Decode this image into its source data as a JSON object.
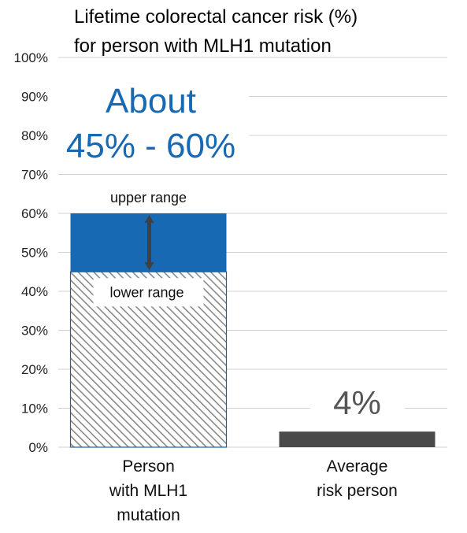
{
  "chart_data": {
    "type": "bar",
    "title_lines": [
      "Lifetime colorectal cancer risk (%)",
      "for person with MLH1 mutation"
    ],
    "xlabel": "",
    "ylabel": "",
    "ylim": [
      0,
      100
    ],
    "y_ticks": [
      0,
      10,
      20,
      30,
      40,
      50,
      60,
      70,
      80,
      90,
      100
    ],
    "y_tick_labels": [
      "0%",
      "10%",
      "20%",
      "30%",
      "40%",
      "50%",
      "60%",
      "70%",
      "80%",
      "90%",
      "100%"
    ],
    "grid": true,
    "categories": [
      {
        "label_lines": [
          "Person",
          "with MLH1",
          "mutation"
        ]
      },
      {
        "label_lines": [
          "Average",
          "risk person"
        ]
      }
    ],
    "bars": [
      {
        "category_index": 0,
        "lower": 45,
        "upper": 60,
        "lower_fill": "hatched",
        "range_color": "#1769b3",
        "lower_label": "lower range",
        "upper_label": "upper range"
      },
      {
        "category_index": 1,
        "value": 4,
        "color": "#4a4a4a",
        "label": "4%"
      }
    ],
    "annotation": {
      "lines": [
        "About",
        "45% - 60%"
      ],
      "color": "#1769b3"
    },
    "colors": {
      "range": "#1769b3",
      "average": "#4a4a4a",
      "hatch": "#8a8a8a",
      "arrow": "#404040",
      "grid": "#d0d0d0",
      "value_label": "#555555"
    }
  }
}
